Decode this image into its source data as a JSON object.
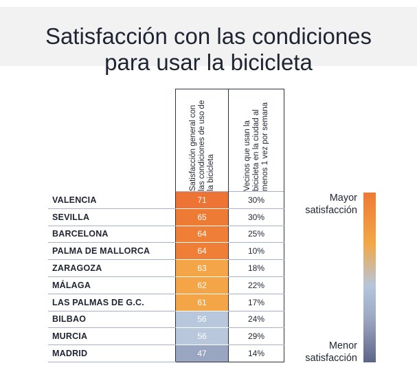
{
  "title_line1": "Satisfacción con las condiciones",
  "title_line2": "para usar la bicicleta",
  "chart_data": {
    "type": "table",
    "columns": [
      "Satisfacción general con las condiciones de uso de la bicicleta",
      "Vecinos que usan la bicicleta en la ciudad al menos 1 vez por semana"
    ],
    "rows": [
      {
        "city": "VALENCIA",
        "score": 71,
        "weekly": "30%",
        "color": "#ed7434"
      },
      {
        "city": "SEVILLA",
        "score": 65,
        "weekly": "30%",
        "color": "#ed7b36"
      },
      {
        "city": "BARCELONA",
        "score": 64,
        "weekly": "25%",
        "color": "#ef7f37"
      },
      {
        "city": "PALMA DE MALLORCA",
        "score": 64,
        "weekly": "10%",
        "color": "#ef7f37"
      },
      {
        "city": "ZARAGOZA",
        "score": 63,
        "weekly": "18%",
        "color": "#f3a548"
      },
      {
        "city": "MÁLAGA",
        "score": 62,
        "weekly": "22%",
        "color": "#f3a548"
      },
      {
        "city": "LAS PALMAS DE G.C.",
        "score": 61,
        "weekly": "17%",
        "color": "#f3a548"
      },
      {
        "city": "BILBAO",
        "score": 56,
        "weekly": "24%",
        "color": "#b8c7dc"
      },
      {
        "city": "MURCIA",
        "score": 56,
        "weekly": "29%",
        "color": "#b8c7dc"
      },
      {
        "city": "MADRID",
        "score": 47,
        "weekly": "14%",
        "color": "#9aa5c2"
      }
    ]
  },
  "legend": {
    "top_line1": "Mayor",
    "top_line2": "satisfacción",
    "bottom_line1": "Menor",
    "bottom_line2": "satisfacción"
  }
}
